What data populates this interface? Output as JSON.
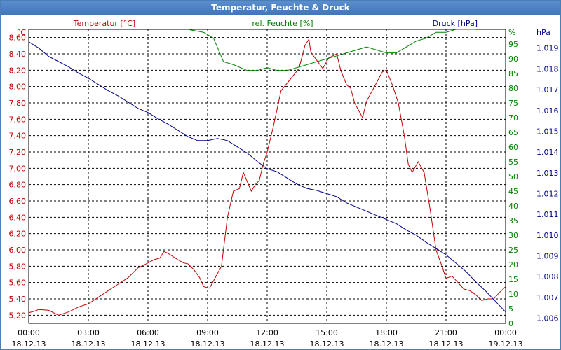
{
  "window": {
    "title": "Temperatur, Feuchte & Druck"
  },
  "chart_data": {
    "type": "line",
    "title": "Temperatur, Feuchte & Druck",
    "grid": true,
    "colors": {
      "temp": "#c00000",
      "hum": "#008000",
      "press": "#00008b",
      "grid": "#000000"
    },
    "x_ticks": [
      {
        "time": "00:00",
        "date": "18.12.13"
      },
      {
        "time": "03:00",
        "date": "18.12.13"
      },
      {
        "time": "06:00",
        "date": "18.12.13"
      },
      {
        "time": "09:00",
        "date": "18.12.13"
      },
      {
        "time": "12:00",
        "date": "18.12.13"
      },
      {
        "time": "15:00",
        "date": "18.12.13"
      },
      {
        "time": "18:00",
        "date": "18.12.13"
      },
      {
        "time": "21:00",
        "date": "18.12.13"
      },
      {
        "time": "00:00",
        "date": "19.12.13"
      }
    ],
    "x_hours_range": [
      0,
      24
    ],
    "temp_axis": {
      "label": "Temperatur [°C]",
      "unit": "°C",
      "range": [
        5.1,
        8.7
      ],
      "ticks": [
        "8,60",
        "8,40",
        "8,20",
        "8,00",
        "7,80",
        "7,60",
        "7,40",
        "7,20",
        "7,00",
        "6,80",
        "6,60",
        "6,40",
        "6,20",
        "6,00",
        "5,80",
        "5,60",
        "5,40",
        "5,20"
      ]
    },
    "hum_axis": {
      "label": "rel. Feuchte [%]",
      "unit": "%",
      "range": [
        0,
        100
      ],
      "ticks": [
        "95",
        "90",
        "85",
        "80",
        "75",
        "70",
        "65",
        "60",
        "55",
        "50",
        "45",
        "40",
        "35",
        "30",
        "25",
        "20",
        "15",
        "10",
        "5",
        "0"
      ]
    },
    "press_axis": {
      "label": "Druck [hPa]",
      "unit": "hPa",
      "range": [
        1005.75,
        1019.9
      ],
      "ticks": [
        "1.019",
        "1.018",
        "1.017",
        "1.016",
        "1.015",
        "1.014",
        "1.013",
        "1.012",
        "1.011",
        "1.010",
        "1.009",
        "1.008",
        "1.007",
        "1.006"
      ]
    },
    "series": [
      {
        "name": "Temperatur [°C]",
        "axis": "temp",
        "color": "#c00000",
        "x": [
          0,
          0.3,
          0.5,
          1,
          1.5,
          2,
          2.5,
          3,
          3.5,
          4,
          4.5,
          5,
          5.5,
          6,
          6.3,
          6.6,
          6.8,
          7,
          7.5,
          7.8,
          8,
          8.3,
          8.6,
          8.8,
          9.1,
          9.3,
          9.7,
          10,
          10.3,
          10.6,
          10.8,
          11.2,
          11.4,
          11.6,
          11.8,
          12,
          12.3,
          12.7,
          13.2,
          13.6,
          13.9,
          14.1,
          14.2,
          14.5,
          14.8,
          15.1,
          15.5,
          15.7,
          16,
          16.2,
          16.4,
          16.8,
          17,
          17.4,
          17.8,
          18,
          18.3,
          18.6,
          18.9,
          19.1,
          19.3,
          19.6,
          19.9,
          20.2,
          20.5,
          20.8,
          21,
          21.3,
          21.6,
          21.9,
          22.2,
          22.5,
          22.8,
          23.1,
          23.4,
          23.7,
          24
        ],
        "values": [
          5.23,
          5.25,
          5.27,
          5.26,
          5.2,
          5.24,
          5.3,
          5.34,
          5.42,
          5.5,
          5.58,
          5.66,
          5.78,
          5.84,
          5.88,
          5.9,
          5.98,
          5.96,
          5.88,
          5.84,
          5.83,
          5.76,
          5.66,
          5.55,
          5.53,
          5.62,
          5.8,
          6.4,
          6.72,
          6.75,
          6.95,
          6.72,
          6.8,
          6.85,
          7.05,
          7.2,
          7.5,
          7.95,
          8.1,
          8.22,
          8.5,
          8.58,
          8.42,
          8.32,
          8.22,
          8.35,
          8.4,
          8.2,
          8.02,
          7.98,
          7.8,
          7.62,
          7.82,
          8.0,
          8.18,
          8.2,
          8.02,
          7.8,
          7.4,
          7.05,
          6.95,
          7.08,
          6.95,
          6.5,
          6.0,
          5.8,
          5.65,
          5.68,
          5.6,
          5.52,
          5.5,
          5.45,
          5.38,
          5.4,
          5.4,
          5.48,
          5.55
        ]
      },
      {
        "name": "rel. Feuchte [%]",
        "axis": "hum",
        "color": "#008000",
        "x": [
          8.0,
          8.8,
          9.3,
          9.8,
          10.3,
          11,
          11.5,
          12,
          12.5,
          13,
          13.5,
          14,
          14.5,
          15,
          15.5,
          16,
          16.5,
          17,
          17.5,
          18,
          18.5,
          19,
          19.5,
          20,
          20.5,
          21,
          21.5,
          22,
          22.5
        ],
        "values": [
          100,
          99,
          97,
          89,
          88,
          86,
          86,
          87,
          86,
          86,
          87,
          88,
          89,
          90,
          91,
          92,
          93,
          94,
          93,
          92,
          92,
          94,
          96,
          97,
          99,
          99,
          100,
          100,
          100
        ]
      },
      {
        "name": "Druck [hPa]",
        "axis": "press",
        "color": "#00008b",
        "x": [
          0,
          0.5,
          1,
          1.5,
          2,
          2.5,
          3,
          3.5,
          4,
          4.5,
          5,
          5.5,
          6,
          6.5,
          7,
          7.5,
          8,
          8.5,
          9,
          9.5,
          10,
          10.5,
          11,
          11.5,
          12,
          12.5,
          13,
          13.5,
          14,
          14.5,
          15,
          15.5,
          16,
          16.5,
          17,
          17.5,
          18,
          18.5,
          19,
          19.5,
          20,
          20.5,
          21,
          21.5,
          22,
          22.5,
          23,
          23.5,
          24
        ],
        "values": [
          1019.3,
          1019.0,
          1018.6,
          1018.35,
          1018.1,
          1017.8,
          1017.55,
          1017.25,
          1016.95,
          1016.7,
          1016.4,
          1016.1,
          1015.9,
          1015.6,
          1015.35,
          1015.05,
          1014.75,
          1014.55,
          1014.55,
          1014.65,
          1014.55,
          1014.25,
          1013.95,
          1013.55,
          1013.2,
          1013.05,
          1012.75,
          1012.45,
          1012.25,
          1012.15,
          1012.0,
          1011.85,
          1011.55,
          1011.35,
          1011.15,
          1010.95,
          1010.75,
          1010.55,
          1010.25,
          1010.0,
          1009.65,
          1009.35,
          1009.05,
          1008.65,
          1008.25,
          1007.75,
          1007.3,
          1006.8,
          1006.3
        ]
      }
    ]
  }
}
